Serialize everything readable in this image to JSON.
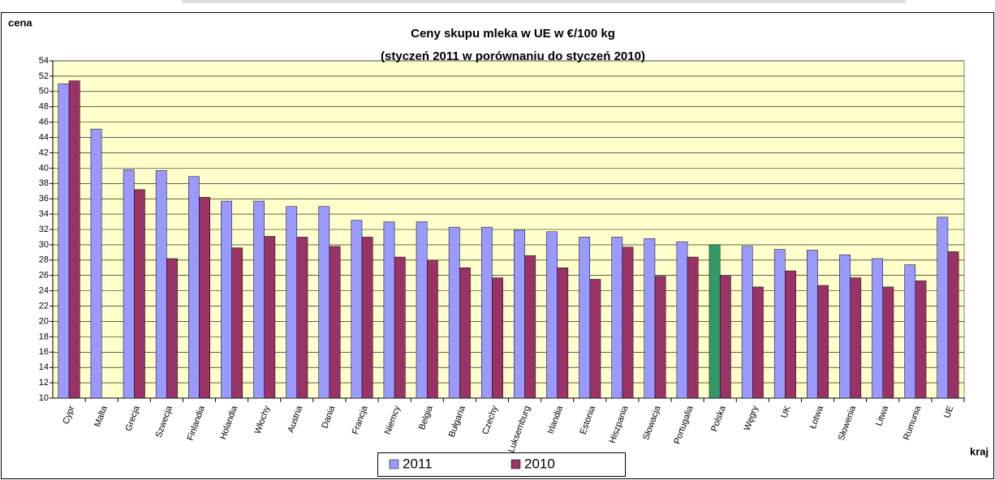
{
  "chart_data": {
    "type": "bar",
    "title": "Ceny skupu mleka w UE w €/100 kg",
    "subtitle": "(styczeń 2011 w porównaniu do styczeń 2010)",
    "y_label": "cena",
    "x_label": "kraj",
    "categories": [
      "Cypr",
      "Malta",
      "Grecja",
      "Szwecja",
      "Finlandia",
      "Holandia",
      "Włochy",
      "Austria",
      "Dania",
      "Francja",
      "Niemcy",
      "Belgia",
      "Bułgaria",
      "Czechy",
      "Luksemburg",
      "Irlandia",
      "Estonia",
      "Hiszpania",
      "Słowacja",
      "Portugalia",
      "Polska",
      "Węgry",
      "UK",
      "Łotwa",
      "Słowenia",
      "Litwa",
      "Rumunia",
      "UE"
    ],
    "series": [
      {
        "name": "2011",
        "color": "#9999ff",
        "point_colors": [
          "#9999ff",
          "#9999ff",
          "#9999ff",
          "#9999ff",
          "#9999ff",
          "#9999ff",
          "#9999ff",
          "#9999ff",
          "#9999ff",
          "#9999ff",
          "#9999ff",
          "#9999ff",
          "#9999ff",
          "#9999ff",
          "#9999ff",
          "#9999ff",
          "#9999ff",
          "#9999ff",
          "#9999ff",
          "#9999ff",
          "#339966",
          "#9999ff",
          "#9999ff",
          "#9999ff",
          "#9999ff",
          "#9999ff",
          "#9999ff",
          "#9999ff"
        ],
        "values": [
          51.0,
          45.1,
          39.8,
          39.7,
          38.9,
          35.7,
          35.7,
          35.0,
          35.0,
          33.2,
          33.0,
          33.0,
          32.3,
          32.3,
          31.9,
          31.7,
          31.0,
          31.0,
          30.8,
          30.4,
          30.0,
          29.8,
          29.4,
          29.3,
          28.7,
          28.2,
          27.4,
          33.6
        ]
      },
      {
        "name": "2010",
        "color": "#993366",
        "values": [
          51.4,
          null,
          37.2,
          28.2,
          36.2,
          29.6,
          31.1,
          31.0,
          29.8,
          31.0,
          28.4,
          28.0,
          27.0,
          25.7,
          28.6,
          27.0,
          25.5,
          29.7,
          25.9,
          28.4,
          26.0,
          24.5,
          26.6,
          24.7,
          25.7,
          24.5,
          25.3,
          29.1
        ]
      }
    ],
    "ylim": [
      10,
      54
    ],
    "yticks": [
      10,
      12,
      14,
      16,
      18,
      20,
      22,
      24,
      26,
      28,
      30,
      32,
      34,
      36,
      38,
      40,
      42,
      44,
      46,
      48,
      50,
      52,
      54
    ],
    "grid": true,
    "plot_background": "#ffffcc",
    "legend": "bottom"
  }
}
